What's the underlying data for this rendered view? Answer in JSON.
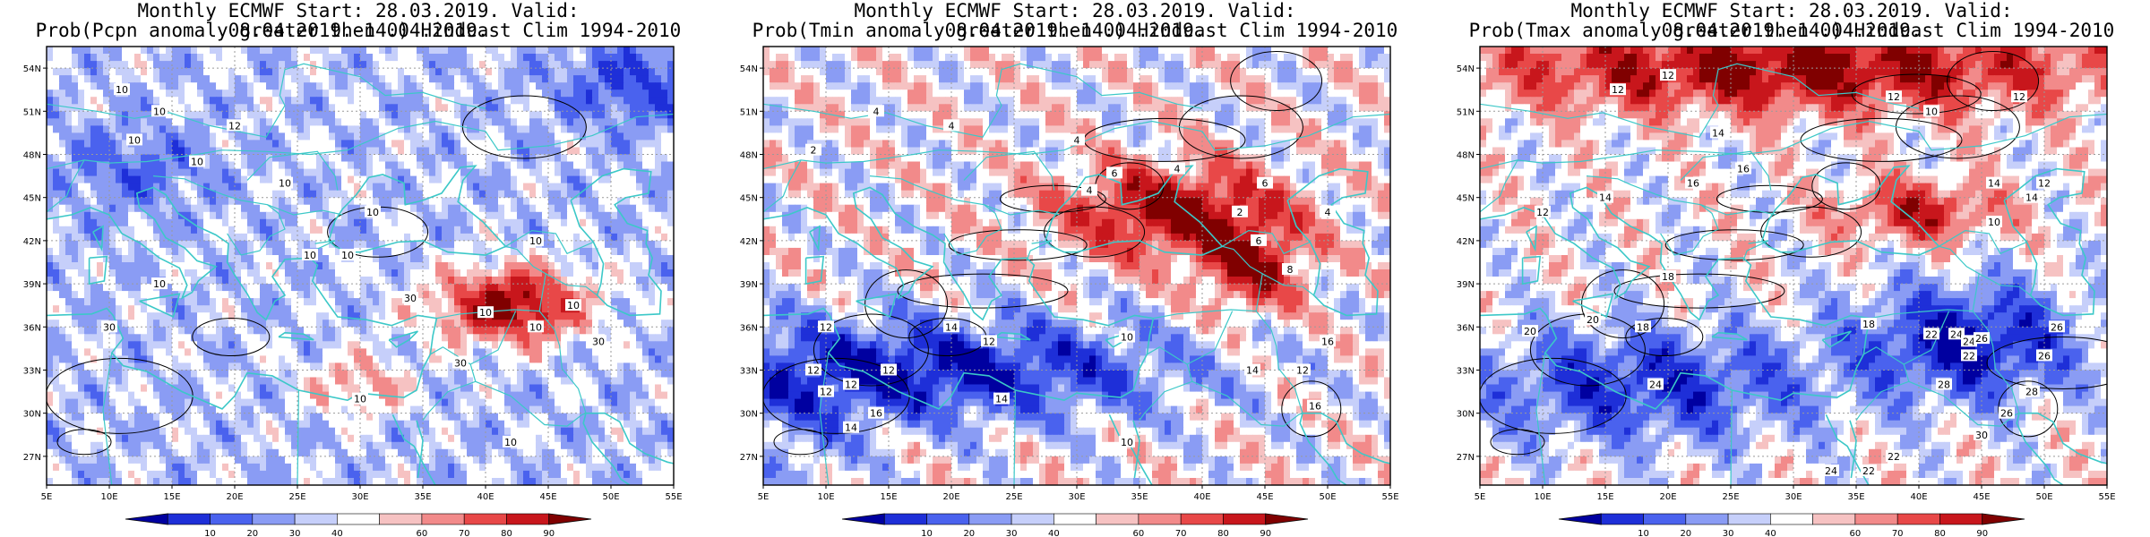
{
  "panels": [
    {
      "title_line1": "Monthly ECMWF Start: 28.03.2019. Valid: 08.04.2019.-14.04.2019.",
      "title_line2": "Prob(Pcpn anomaly greater then 0) Hindcast Clim 1994-2010",
      "variable": "Pcpn",
      "contour_labels": [
        "10",
        "10",
        "12",
        "10",
        "10",
        "10",
        "10",
        "10",
        "10",
        "10",
        "10",
        "10",
        "30",
        "30",
        "30",
        "30",
        "10",
        "10",
        "10",
        "10"
      ]
    },
    {
      "title_line1": "Monthly ECMWF Start: 28.03.2019. Valid: 08.04.2019.-14.04.2019.",
      "title_line2": "Prob(Tmin anomaly greater then 0) Hindcast Clim 1994-2010",
      "variable": "Tmin",
      "contour_labels": [
        "4",
        "4",
        "2",
        "4",
        "4",
        "6",
        "4",
        "6",
        "4",
        "6",
        "2",
        "8",
        "12",
        "12",
        "14",
        "12",
        "10",
        "14",
        "12",
        "14",
        "16",
        "12",
        "12",
        "10",
        "14",
        "12",
        "16",
        "16"
      ]
    },
    {
      "title_line1": "Monthly ECMWF Start: 28.03.2019. Valid: 08.04.2019.-14.04.2019.",
      "title_line2": "Prob(Tmax anomaly greater then 0) Hindcast Clim 1994-2010",
      "variable": "Tmax",
      "contour_labels": [
        "12",
        "12",
        "12",
        "10",
        "12",
        "12",
        "14",
        "14",
        "16",
        "14",
        "14",
        "12",
        "10",
        "16",
        "18",
        "18",
        "20",
        "20",
        "22",
        "24",
        "18",
        "22",
        "24",
        "26",
        "24",
        "26",
        "28",
        "26",
        "30",
        "28",
        "24",
        "22",
        "22",
        "26"
      ]
    }
  ],
  "axes": {
    "lat_labels": [
      "54N",
      "51N",
      "48N",
      "45N",
      "42N",
      "39N",
      "36N",
      "33N",
      "30N",
      "27N"
    ],
    "lon_labels": [
      "5E",
      "10E",
      "15E",
      "20E",
      "25E",
      "30E",
      "35E",
      "40E",
      "45E",
      "50E",
      "55E"
    ]
  },
  "colorbar": {
    "ticks": [
      "10",
      "20",
      "30",
      "40",
      "60",
      "70",
      "80",
      "90"
    ],
    "colors": [
      "#0000a0",
      "#1e2fd8",
      "#4a62ee",
      "#8a9cf4",
      "#c6cffa",
      "#ffffff",
      "#f6c2c2",
      "#f28a8a",
      "#e84848",
      "#c8161c",
      "#800000"
    ]
  },
  "colors": {
    "coast": "#3cc8c8",
    "contour": "#000000",
    "grid": "#9a9a9a"
  }
}
